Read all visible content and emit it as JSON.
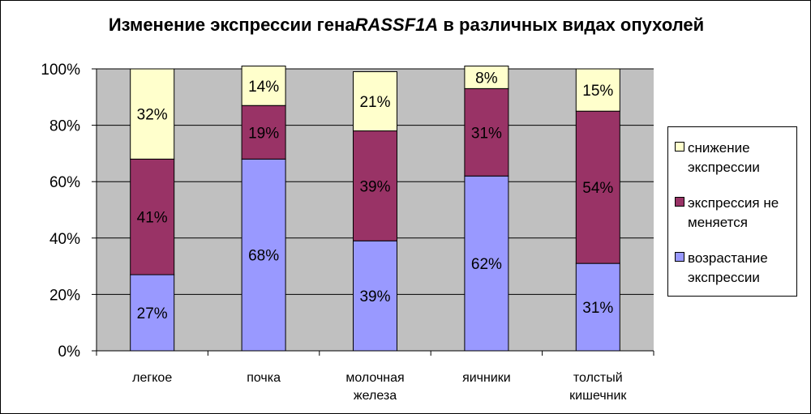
{
  "chart_data": {
    "type": "bar",
    "stacked": true,
    "percent": true,
    "title": {
      "prefix": "Изменение экспрессии гена",
      "gene": "RASSF1A",
      "suffix": " в различных видах опухолей"
    },
    "categories": [
      [
        "легкое"
      ],
      [
        "почка"
      ],
      [
        "молочная",
        "железа"
      ],
      [
        "яичники"
      ],
      [
        "толстый",
        "кишечник"
      ]
    ],
    "series": [
      {
        "name": "возрастание экспрессии",
        "legend_lines": [
          "возрастание",
          "экспрессии"
        ],
        "color": "#9999FF",
        "values": [
          27,
          68,
          39,
          62,
          31
        ],
        "labels": [
          "27%",
          "68%",
          "39%",
          "62%",
          "31%"
        ]
      },
      {
        "name": "экспрессия не меняется",
        "legend_lines": [
          "экспрессия не",
          "меняется"
        ],
        "color": "#993366",
        "values": [
          41,
          19,
          39,
          31,
          54
        ],
        "labels": [
          "41%",
          "19%",
          "39%",
          "31%",
          "54%"
        ]
      },
      {
        "name": "снижение экспрессии",
        "legend_lines": [
          "снижение",
          "экспрессии"
        ],
        "color": "#FFFFCC",
        "values": [
          32,
          14,
          21,
          8,
          15
        ],
        "labels": [
          "32%",
          "14%",
          "21%",
          "8%",
          "15%"
        ]
      }
    ],
    "y_ticks": [
      "0%",
      "20%",
      "40%",
      "60%",
      "80%",
      "100%"
    ],
    "ylim": [
      0,
      100
    ],
    "grid": true,
    "plot_background": "#C0C0C0",
    "legend_position": "right"
  }
}
